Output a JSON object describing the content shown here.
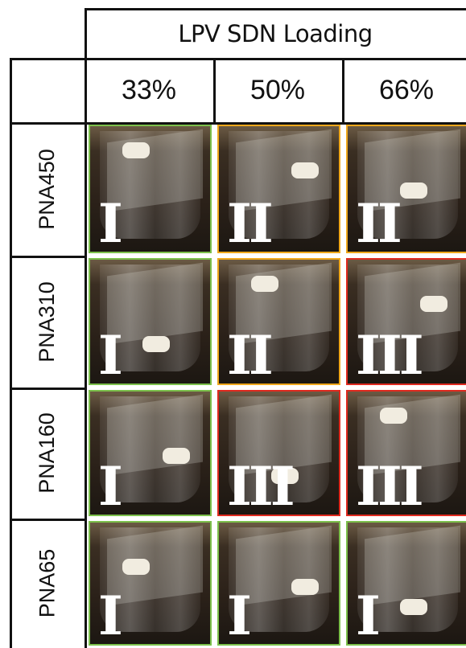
{
  "table": {
    "header": "LPV SDN Loading",
    "columns": [
      "33%",
      "50%",
      "66%"
    ],
    "rows": [
      {
        "label": "PNA450",
        "cells": [
          {
            "grade": "I",
            "color": "#7cc04b"
          },
          {
            "grade": "II",
            "color": "#f0a81c"
          },
          {
            "grade": "II",
            "color": "#f0a81c"
          }
        ]
      },
      {
        "label": "PNA310",
        "cells": [
          {
            "grade": "I",
            "color": "#7cc04b"
          },
          {
            "grade": "II",
            "color": "#f0a81c"
          },
          {
            "grade": "III",
            "color": "#e02a1f"
          }
        ]
      },
      {
        "label": "PNA160",
        "cells": [
          {
            "grade": "I",
            "color": "#7cc04b"
          },
          {
            "grade": "III",
            "color": "#e02a1f"
          },
          {
            "grade": "III",
            "color": "#e02a1f"
          }
        ]
      },
      {
        "label": "PNA65",
        "cells": [
          {
            "grade": "I",
            "color": "#7cc04b"
          },
          {
            "grade": "I",
            "color": "#7cc04b"
          },
          {
            "grade": "I",
            "color": "#7cc04b"
          }
        ]
      }
    ]
  }
}
